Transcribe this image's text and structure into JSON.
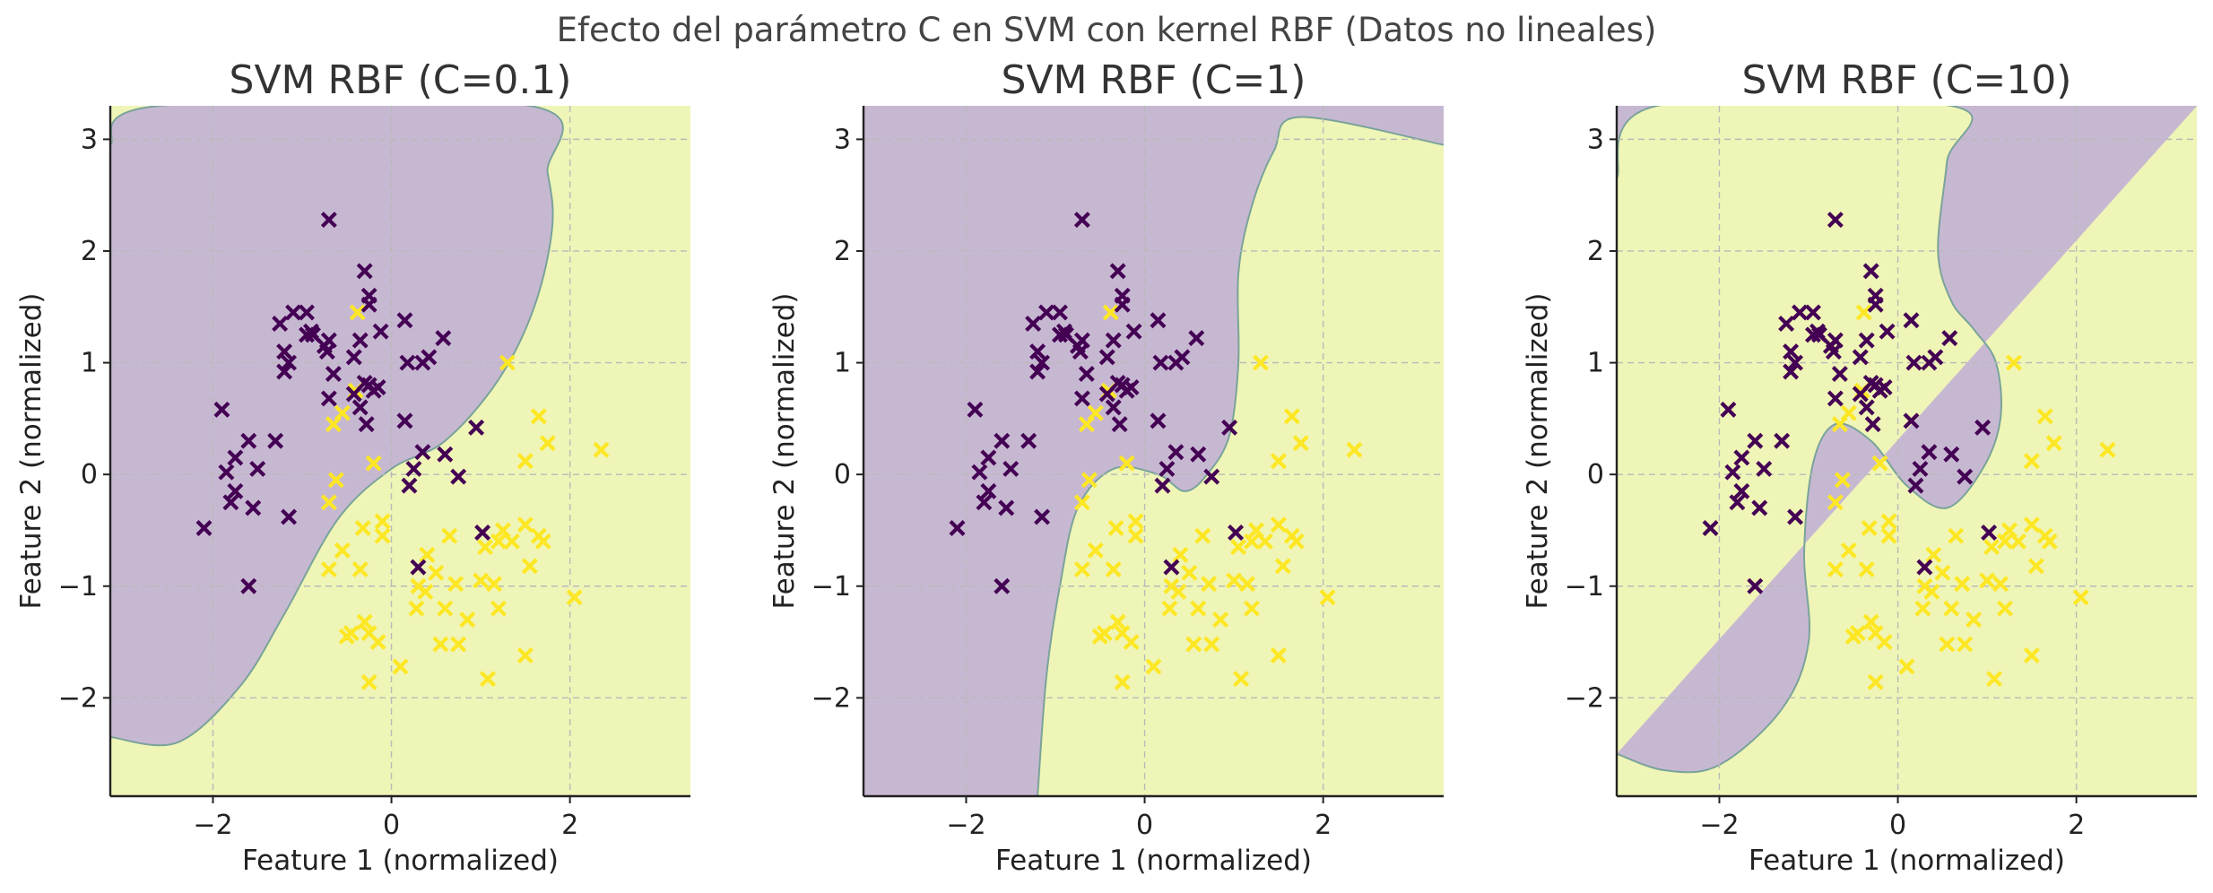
{
  "suptitle": "Efecto del parámetro C en SVM con kernel RBF (Datos no lineales)",
  "colors": {
    "class0_marker": "#440154",
    "class1_marker": "#fde725",
    "region_class0": "#c7b8d2",
    "region_class1": "#eff5b6",
    "boundary": "#7aa39a"
  },
  "chart_data": [
    {
      "type": "scatter",
      "title": "SVM RBF (C=0.1)",
      "xlabel": "Feature 1 (normalized)",
      "ylabel": "Feature 2 (normalized)",
      "xlim": [
        -3.15,
        3.35
      ],
      "ylim": [
        -2.88,
        3.3
      ],
      "xticks": [
        -2,
        0,
        2
      ],
      "yticks": [
        -2,
        -1,
        0,
        1,
        2,
        3
      ],
      "grid": true,
      "decision_boundary": {
        "description": "class-0 region above the curve",
        "points": [
          [
            -3.15,
            2.95
          ],
          [
            -2.6,
            3.3
          ],
          [
            1.55,
            3.3
          ],
          [
            1.75,
            2.7
          ],
          [
            1.8,
            2.2
          ],
          [
            1.6,
            1.5
          ],
          [
            1.2,
            0.85
          ],
          [
            0.6,
            0.3
          ],
          [
            0.0,
            0.05
          ],
          [
            -0.6,
            -0.4
          ],
          [
            -1.2,
            -1.25
          ],
          [
            -1.7,
            -1.9
          ],
          [
            -2.4,
            -2.4
          ],
          [
            -3.15,
            -2.35
          ]
        ]
      }
    },
    {
      "type": "scatter",
      "title": "SVM RBF (C=1)",
      "xlabel": "Feature 1 (normalized)",
      "ylabel": "Feature 2 (normalized)",
      "xlim": [
        -3.15,
        3.35
      ],
      "ylim": [
        -2.88,
        3.3
      ],
      "xticks": [
        -2,
        0,
        2
      ],
      "yticks": [
        -2,
        -1,
        0,
        1,
        2,
        3
      ],
      "grid": true,
      "decision_boundary": {
        "description": "class-0 region on the upper-left side of the curve",
        "points": [
          [
            -1.2,
            -2.88
          ],
          [
            -1.1,
            -1.8
          ],
          [
            -0.95,
            -1.0
          ],
          [
            -0.75,
            -0.3
          ],
          [
            -0.35,
            0.05
          ],
          [
            0.15,
            0.0
          ],
          [
            0.45,
            -0.15
          ],
          [
            0.7,
            0.0
          ],
          [
            0.95,
            0.35
          ],
          [
            1.05,
            1.0
          ],
          [
            1.05,
            1.8
          ],
          [
            1.2,
            2.4
          ],
          [
            1.45,
            2.9
          ],
          [
            1.75,
            3.2
          ],
          [
            3.35,
            2.95
          ]
        ]
      }
    },
    {
      "type": "scatter",
      "title": "SVM RBF (C=10)",
      "xlabel": "Feature 1 (normalized)",
      "ylabel": "Feature 2 (normalized)",
      "xlim": [
        -3.15,
        3.35
      ],
      "ylim": [
        -2.88,
        3.3
      ],
      "xticks": [
        -2,
        0,
        2
      ],
      "yticks": [
        -2,
        -1,
        0,
        1,
        2,
        3
      ],
      "grid": true,
      "decision_boundary": {
        "description": "class-0 region on the upper-left side of the curve",
        "points": [
          [
            -3.15,
            2.65
          ],
          [
            -2.7,
            3.3
          ],
          [
            0.6,
            3.3
          ],
          [
            0.55,
            2.8
          ],
          [
            0.45,
            2.0
          ],
          [
            0.6,
            1.55
          ],
          [
            0.85,
            1.3
          ],
          [
            1.1,
            1.0
          ],
          [
            1.15,
            0.5
          ],
          [
            0.95,
            0.05
          ],
          [
            0.55,
            -0.3
          ],
          [
            0.1,
            -0.1
          ],
          [
            -0.3,
            0.3
          ],
          [
            -0.7,
            0.45
          ],
          [
            -0.95,
            0.1
          ],
          [
            -1.05,
            -0.7
          ],
          [
            -1.0,
            -1.5
          ],
          [
            -1.3,
            -2.1
          ],
          [
            -2.0,
            -2.6
          ],
          [
            -2.6,
            -2.65
          ],
          [
            -3.15,
            -2.5
          ]
        ]
      }
    }
  ],
  "points": {
    "class0": [
      [
        -0.7,
        2.28
      ],
      [
        -0.3,
        1.82
      ],
      [
        -0.25,
        1.6
      ],
      [
        -0.25,
        1.52
      ],
      [
        -0.95,
        1.45
      ],
      [
        -1.1,
        1.45
      ],
      [
        -1.25,
        1.35
      ],
      [
        -0.9,
        1.28
      ],
      [
        -0.95,
        1.25
      ],
      [
        -0.88,
        1.25
      ],
      [
        -0.7,
        1.2
      ],
      [
        -0.72,
        1.1
      ],
      [
        -1.2,
        1.1
      ],
      [
        -1.15,
        1.0
      ],
      [
        -1.2,
        0.92
      ],
      [
        -0.75,
        1.15
      ],
      [
        -0.35,
        1.2
      ],
      [
        -0.12,
        1.28
      ],
      [
        -0.42,
        1.05
      ],
      [
        0.15,
        1.38
      ],
      [
        0.18,
        1.0
      ],
      [
        0.35,
        1.0
      ],
      [
        0.42,
        1.05
      ],
      [
        0.58,
        1.22
      ],
      [
        -0.65,
        0.9
      ],
      [
        -0.7,
        0.68
      ],
      [
        -0.42,
        0.72
      ],
      [
        -0.3,
        0.82
      ],
      [
        -0.25,
        0.8
      ],
      [
        -0.2,
        0.75
      ],
      [
        -0.15,
        0.78
      ],
      [
        -0.35,
        0.6
      ],
      [
        -0.28,
        0.45
      ],
      [
        0.15,
        0.48
      ],
      [
        0.95,
        0.42
      ],
      [
        0.35,
        0.2
      ],
      [
        0.25,
        0.05
      ],
      [
        0.2,
        -0.1
      ],
      [
        0.6,
        0.18
      ],
      [
        0.75,
        -0.02
      ],
      [
        -1.9,
        0.58
      ],
      [
        -1.6,
        0.3
      ],
      [
        -1.3,
        0.3
      ],
      [
        -1.75,
        0.15
      ],
      [
        -1.85,
        0.02
      ],
      [
        -1.5,
        0.05
      ],
      [
        -1.75,
        -0.15
      ],
      [
        -1.8,
        -0.25
      ],
      [
        -1.55,
        -0.3
      ],
      [
        -1.15,
        -0.38
      ],
      [
        -2.1,
        -0.48
      ],
      [
        -1.6,
        -1.0
      ],
      [
        1.02,
        -0.52
      ],
      [
        0.3,
        -0.83
      ]
    ],
    "class1": [
      [
        -0.38,
        1.45
      ],
      [
        1.3,
        1.0
      ],
      [
        -0.4,
        0.75
      ],
      [
        -0.55,
        0.55
      ],
      [
        -0.65,
        0.45
      ],
      [
        -0.2,
        0.1
      ],
      [
        -0.7,
        -0.25
      ],
      [
        -0.62,
        -0.05
      ],
      [
        -0.32,
        -0.48
      ],
      [
        -0.1,
        -0.42
      ],
      [
        -0.1,
        -0.55
      ],
      [
        -0.55,
        -0.68
      ],
      [
        -0.7,
        -0.85
      ],
      [
        -0.35,
        -0.85
      ],
      [
        0.4,
        -0.72
      ],
      [
        0.65,
        -0.55
      ],
      [
        0.5,
        -0.88
      ],
      [
        0.3,
        -1.0
      ],
      [
        0.72,
        -0.98
      ],
      [
        0.38,
        -1.05
      ],
      [
        0.28,
        -1.2
      ],
      [
        0.6,
        -1.2
      ],
      [
        0.85,
        -1.3
      ],
      [
        1.0,
        -0.95
      ],
      [
        1.2,
        -0.6
      ],
      [
        1.05,
        -0.65
      ],
      [
        1.25,
        -0.5
      ],
      [
        1.5,
        -0.45
      ],
      [
        1.65,
        -0.55
      ],
      [
        1.7,
        -0.6
      ],
      [
        1.35,
        -0.6
      ],
      [
        1.55,
        -0.82
      ],
      [
        1.15,
        -0.98
      ],
      [
        1.2,
        -1.2
      ],
      [
        0.55,
        -1.52
      ],
      [
        0.75,
        -1.52
      ],
      [
        -0.3,
        -1.32
      ],
      [
        -0.25,
        -1.42
      ],
      [
        -0.45,
        -1.42
      ],
      [
        -0.5,
        -1.45
      ],
      [
        -0.15,
        -1.5
      ],
      [
        -0.25,
        -1.86
      ],
      [
        0.1,
        -1.72
      ],
      [
        1.08,
        -1.83
      ],
      [
        1.5,
        -1.62
      ],
      [
        2.05,
        -1.1
      ],
      [
        1.75,
        0.28
      ],
      [
        1.65,
        0.52
      ],
      [
        1.5,
        0.12
      ],
      [
        2.35,
        0.22
      ]
    ]
  }
}
